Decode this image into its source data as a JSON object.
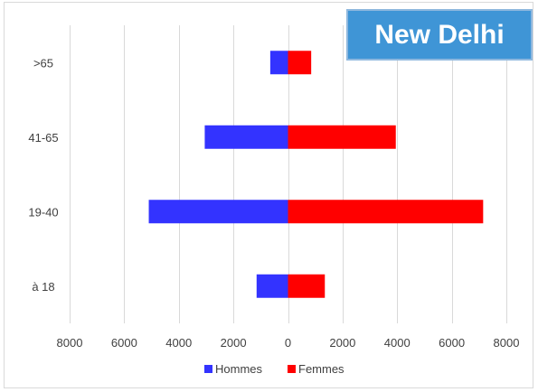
{
  "chart_data": {
    "type": "bar",
    "orientation": "horizontal",
    "title": "New Delhi",
    "categories": [
      "à 18",
      "19-40",
      "41-65",
      ">65"
    ],
    "series": [
      {
        "name": "Hommes",
        "values": [
          -1150,
          -5100,
          -3050,
          -650
        ],
        "color": "#3333ff"
      },
      {
        "name": "Femmes",
        "values": [
          1350,
          7150,
          3950,
          850
        ],
        "color": "#ff0000"
      }
    ],
    "xlim": [
      -8000,
      8000
    ],
    "xticks": [
      -8000,
      -6000,
      -4000,
      -2000,
      0,
      2000,
      4000,
      6000,
      8000
    ],
    "xtick_labels": [
      "8000",
      "6000",
      "4000",
      "2000",
      "0",
      "2000",
      "4000",
      "6000",
      "8000"
    ],
    "grid": "vertical",
    "legend": "bottom",
    "xlabel": "",
    "ylabel": ""
  }
}
